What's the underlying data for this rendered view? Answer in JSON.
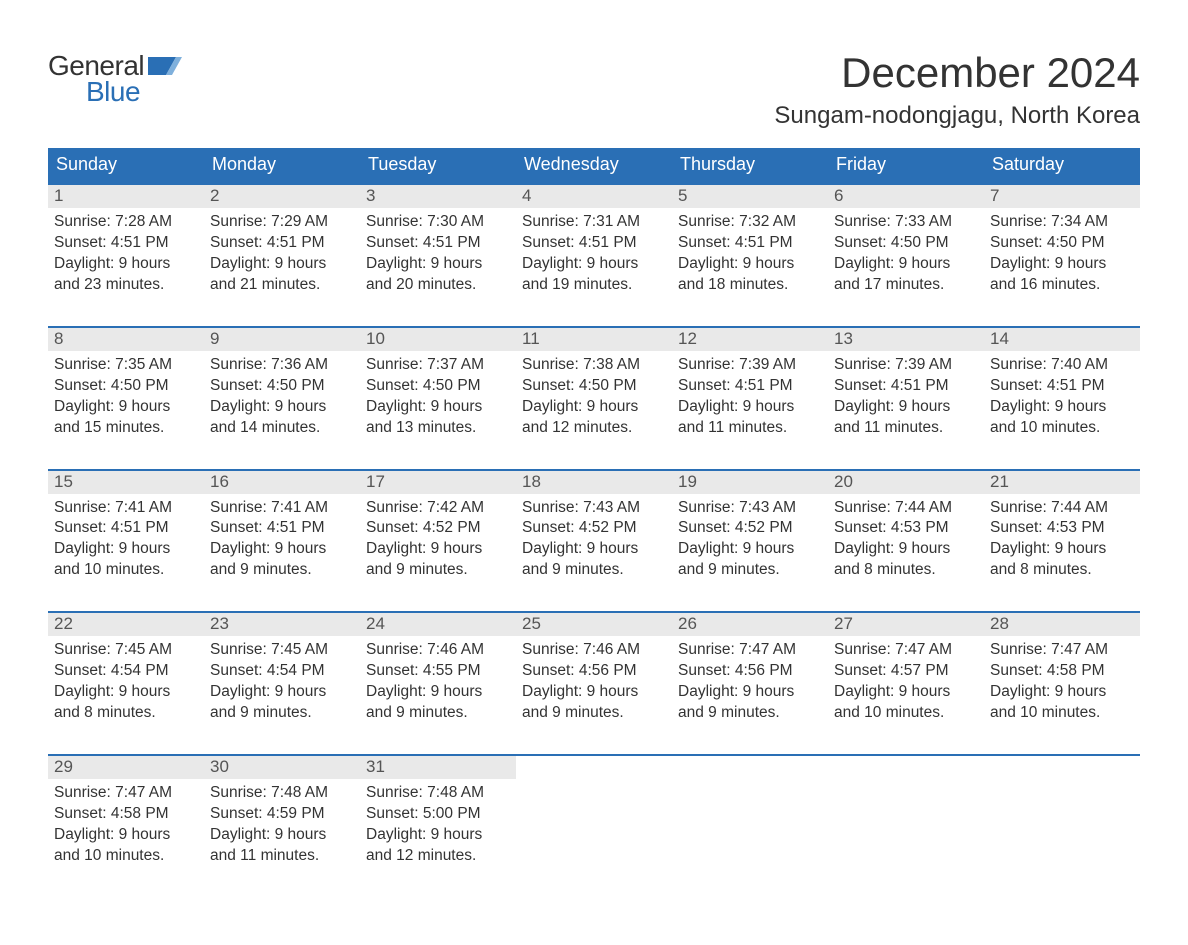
{
  "brand": {
    "word1": "General",
    "word2": "Blue",
    "flag_color": "#2a6fb5"
  },
  "title": "December 2024",
  "location": "Sungam-nodongjagu, North Korea",
  "colors": {
    "header_bg": "#2a6fb5",
    "header_text": "#ffffff",
    "daynum_bg": "#e9e9e9",
    "daynum_text": "#555555",
    "body_text": "#333333",
    "week_border": "#2a6fb5",
    "page_bg": "#ffffff"
  },
  "fonts": {
    "title_size_pt": 32,
    "location_size_pt": 18,
    "weekday_size_pt": 14,
    "daynum_size_pt": 13,
    "detail_size_pt": 12
  },
  "weekdays": [
    "Sunday",
    "Monday",
    "Tuesday",
    "Wednesday",
    "Thursday",
    "Friday",
    "Saturday"
  ],
  "weeks": [
    [
      {
        "day": "1",
        "sunrise": "Sunrise: 7:28 AM",
        "sunset": "Sunset: 4:51 PM",
        "daylight1": "Daylight: 9 hours",
        "daylight2": "and 23 minutes."
      },
      {
        "day": "2",
        "sunrise": "Sunrise: 7:29 AM",
        "sunset": "Sunset: 4:51 PM",
        "daylight1": "Daylight: 9 hours",
        "daylight2": "and 21 minutes."
      },
      {
        "day": "3",
        "sunrise": "Sunrise: 7:30 AM",
        "sunset": "Sunset: 4:51 PM",
        "daylight1": "Daylight: 9 hours",
        "daylight2": "and 20 minutes."
      },
      {
        "day": "4",
        "sunrise": "Sunrise: 7:31 AM",
        "sunset": "Sunset: 4:51 PM",
        "daylight1": "Daylight: 9 hours",
        "daylight2": "and 19 minutes."
      },
      {
        "day": "5",
        "sunrise": "Sunrise: 7:32 AM",
        "sunset": "Sunset: 4:51 PM",
        "daylight1": "Daylight: 9 hours",
        "daylight2": "and 18 minutes."
      },
      {
        "day": "6",
        "sunrise": "Sunrise: 7:33 AM",
        "sunset": "Sunset: 4:50 PM",
        "daylight1": "Daylight: 9 hours",
        "daylight2": "and 17 minutes."
      },
      {
        "day": "7",
        "sunrise": "Sunrise: 7:34 AM",
        "sunset": "Sunset: 4:50 PM",
        "daylight1": "Daylight: 9 hours",
        "daylight2": "and 16 minutes."
      }
    ],
    [
      {
        "day": "8",
        "sunrise": "Sunrise: 7:35 AM",
        "sunset": "Sunset: 4:50 PM",
        "daylight1": "Daylight: 9 hours",
        "daylight2": "and 15 minutes."
      },
      {
        "day": "9",
        "sunrise": "Sunrise: 7:36 AM",
        "sunset": "Sunset: 4:50 PM",
        "daylight1": "Daylight: 9 hours",
        "daylight2": "and 14 minutes."
      },
      {
        "day": "10",
        "sunrise": "Sunrise: 7:37 AM",
        "sunset": "Sunset: 4:50 PM",
        "daylight1": "Daylight: 9 hours",
        "daylight2": "and 13 minutes."
      },
      {
        "day": "11",
        "sunrise": "Sunrise: 7:38 AM",
        "sunset": "Sunset: 4:50 PM",
        "daylight1": "Daylight: 9 hours",
        "daylight2": "and 12 minutes."
      },
      {
        "day": "12",
        "sunrise": "Sunrise: 7:39 AM",
        "sunset": "Sunset: 4:51 PM",
        "daylight1": "Daylight: 9 hours",
        "daylight2": "and 11 minutes."
      },
      {
        "day": "13",
        "sunrise": "Sunrise: 7:39 AM",
        "sunset": "Sunset: 4:51 PM",
        "daylight1": "Daylight: 9 hours",
        "daylight2": "and 11 minutes."
      },
      {
        "day": "14",
        "sunrise": "Sunrise: 7:40 AM",
        "sunset": "Sunset: 4:51 PM",
        "daylight1": "Daylight: 9 hours",
        "daylight2": "and 10 minutes."
      }
    ],
    [
      {
        "day": "15",
        "sunrise": "Sunrise: 7:41 AM",
        "sunset": "Sunset: 4:51 PM",
        "daylight1": "Daylight: 9 hours",
        "daylight2": "and 10 minutes."
      },
      {
        "day": "16",
        "sunrise": "Sunrise: 7:41 AM",
        "sunset": "Sunset: 4:51 PM",
        "daylight1": "Daylight: 9 hours",
        "daylight2": "and 9 minutes."
      },
      {
        "day": "17",
        "sunrise": "Sunrise: 7:42 AM",
        "sunset": "Sunset: 4:52 PM",
        "daylight1": "Daylight: 9 hours",
        "daylight2": "and 9 minutes."
      },
      {
        "day": "18",
        "sunrise": "Sunrise: 7:43 AM",
        "sunset": "Sunset: 4:52 PM",
        "daylight1": "Daylight: 9 hours",
        "daylight2": "and 9 minutes."
      },
      {
        "day": "19",
        "sunrise": "Sunrise: 7:43 AM",
        "sunset": "Sunset: 4:52 PM",
        "daylight1": "Daylight: 9 hours",
        "daylight2": "and 9 minutes."
      },
      {
        "day": "20",
        "sunrise": "Sunrise: 7:44 AM",
        "sunset": "Sunset: 4:53 PM",
        "daylight1value": "Daylight: 9 hours",
        "daylight1": "Daylight: 9 hours",
        "daylight2": "and 8 minutes."
      },
      {
        "day": "21",
        "sunrise": "Sunrise: 7:44 AM",
        "sun2": "Sunset: 4:53 PM",
        "sunset": "2: Sunset: 4:53 PM",
        "sunsetFix": "Sunset: 4:53 PM",
        "daylight1": "Daylight: 9 hours",
        "daylight2": "and 8 minutes."
      }
    ],
    [
      {
        "day": "22",
        "sunrise": "Sunrise: 7:45 AM",
        "sunset": "Sunset: 4:54 PM",
        "daylight1": "Daylight: 9 hours",
        "daylight2": "and 8 minutes."
      },
      {
        "day": "23",
        "sunrise": "Sunrise: 7:45 AM",
        "sunset": "Sunset: 4:54 PM",
        "daylight1": "Daylight: 9 hours",
        "daylight2": "and 9 minutes."
      },
      {
        "day": "24",
        "sunrise": "Sunrise: 7:46 AM",
        "sunset": "Sunset: 4:55 PM",
        "daylight1": "Daylight: 9 hours",
        "daylight2": "and 9 minutes."
      },
      {
        "day": "25",
        "sunrise": "Sunrise: 7:46 AM",
        "sunset": "Sunset: 4:56 PM",
        "daylight1": "Daylight: 9 hours",
        "daylight2": "and 9 minutes."
      },
      {
        "day": "26",
        "sunrise": "Sunrise: 7:47 AM",
        "sunset": "Sunset: 4:56 PM",
        "daylight1": "Daylight: 9 hours",
        "daylight2": "and 9 minutes."
      },
      {
        "day": "27",
        "sunrise": "Sunrise: 7:47 AM",
        "sunset": "Sunset: 4:57 PM",
        "daylight1": "Daylight: 9 hours",
        "daylight2": "and 10 minutes."
      },
      {
        "day": "28",
        "sunrise": "Sunrise: 7:47 AM",
        "sunset": "Sunset: 4:58 PM",
        "daylight1": "Daylight: 9 hours",
        "daylight2": "and 10 minutes."
      }
    ],
    [
      {
        "day": "29",
        "sunrise": "Sunrise: 7:47 AM",
        "sunset": "Sunset: 4:58 PM",
        "daylight1": "Daylight: 9 hours",
        "daylight2": "and 10 minutes."
      },
      {
        "day": "30",
        "sunrise": "Sunrise: 7:48 AM",
        "sunset": "Sunset: 4:59 PM",
        "daylight1": "Daylight: 9 hours",
        "daylight2": "and 11 minutes."
      },
      {
        "day": "31",
        "sunrise": "Sunrise: 7:48 AM",
        "sunset": "Sunset: 5:00 PM",
        "daylight1": "Daylight: 9 hours",
        "daylight2": "and 12 minutes."
      },
      null,
      null,
      null,
      null
    ]
  ]
}
